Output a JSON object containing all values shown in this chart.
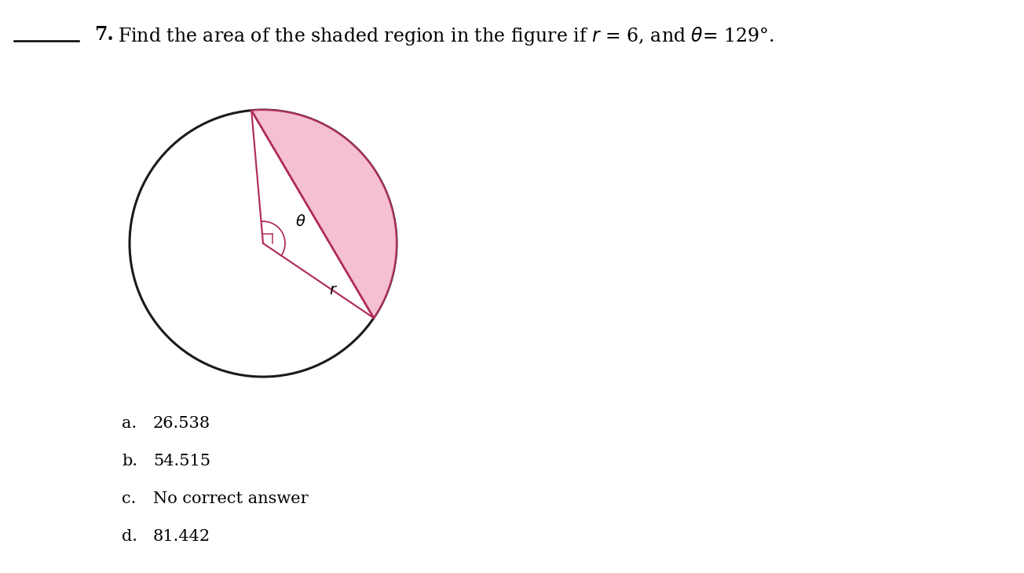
{
  "title_number": "7.",
  "question_text": "Find the area of the shaded region in the figure if $r$ = 6, and $\\theta$= 129°.",
  "r": 6,
  "theta_deg": 129,
  "answers": [
    {
      "letter": "a.",
      "value": "26.538"
    },
    {
      "letter": "b.",
      "value": "54.515"
    },
    {
      "letter": "c.",
      "value": "No correct answer"
    },
    {
      "letter": "d.",
      "value": "81.442"
    }
  ],
  "circle_color": "#1a1a1a",
  "circle_linewidth": 2.2,
  "sector_fill_color": "#f5c0d0",
  "sector_edge_color": "#b03060",
  "sector_edge_linewidth": 1.6,
  "background_color": "#ffffff",
  "fig_width": 13.04,
  "fig_height": 7.3,
  "font_size_question": 17,
  "font_size_answers": 15,
  "font_size_labels": 13
}
